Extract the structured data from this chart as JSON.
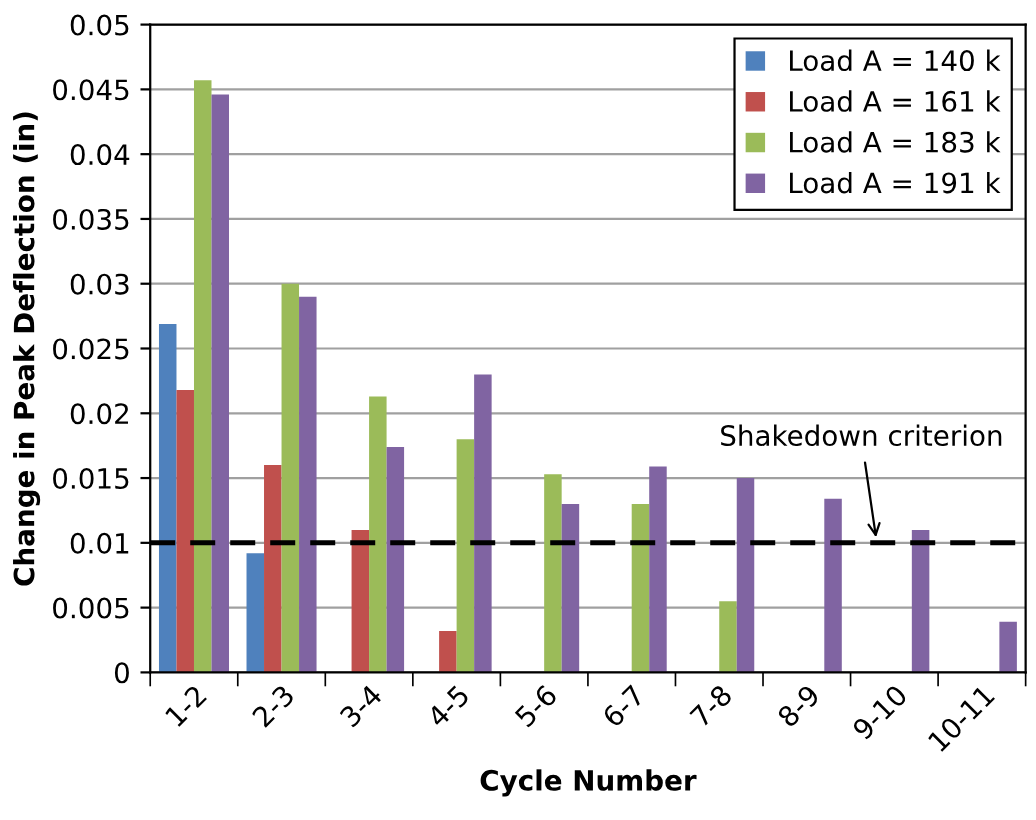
{
  "chart_data": {
    "type": "bar",
    "xlabel": "Cycle Number",
    "ylabel": "Change in Peak Deflection (in)",
    "categories": [
      "1-2",
      "2-3",
      "3-4",
      "4-5",
      "5-6",
      "6-7",
      "7-8",
      "8-9",
      "9-10",
      "10-11"
    ],
    "series": [
      {
        "name": "Load A = 140 k",
        "color": "#4f81bd",
        "values": [
          0.0269,
          0.0092,
          null,
          null,
          null,
          null,
          null,
          null,
          null,
          null
        ]
      },
      {
        "name": "Load A = 161 k",
        "color": "#c0504d",
        "values": [
          0.0218,
          0.016,
          0.011,
          0.0032,
          null,
          null,
          null,
          null,
          null,
          null
        ]
      },
      {
        "name": "Load A = 183 k",
        "color": "#9bbb59",
        "values": [
          0.0457,
          0.03,
          0.0213,
          0.018,
          0.0153,
          0.013,
          0.0055,
          null,
          null,
          null
        ]
      },
      {
        "name": "Load A = 191 k",
        "color": "#8064a2",
        "values": [
          0.0446,
          0.029,
          0.0174,
          0.023,
          0.013,
          0.0159,
          0.015,
          0.0134,
          0.011,
          0.0039
        ]
      }
    ],
    "ylim": [
      0,
      0.05
    ],
    "yticks": [
      0,
      0.005,
      0.01,
      0.015,
      0.02,
      0.025,
      0.03,
      0.035,
      0.04,
      0.045,
      0.05
    ],
    "ref_lines": [
      {
        "axis": "y",
        "value": 0.01,
        "label": "Shakedown criterion",
        "color": "#000000",
        "line_style": "dashed"
      }
    ],
    "grid": "y",
    "legend": "top right"
  }
}
